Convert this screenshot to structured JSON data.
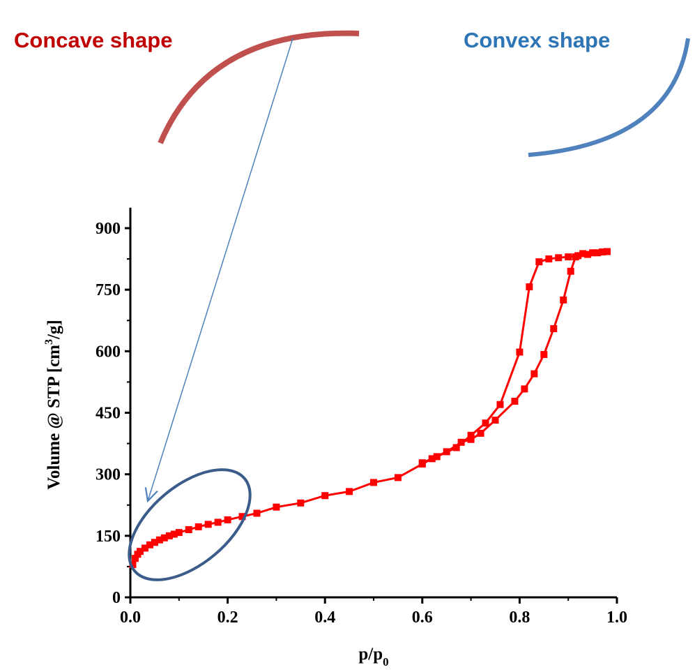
{
  "chart_data": {
    "type": "line",
    "annotations": [
      {
        "text": "Concave shape",
        "color": "#c00000"
      },
      {
        "text": "Convex shape",
        "color": "#2e75b6"
      }
    ],
    "y_label": {
      "text": "Volume @ STP [cm",
      "superscript": "3",
      "suffix": "/g]"
    },
    "x_label": {
      "text": "p/p",
      "subscript": "0"
    },
    "xlim": [
      0,
      1
    ],
    "ylim": [
      0,
      950
    ],
    "xticks": [
      {
        "value": 0,
        "label": "0.0"
      },
      0.2,
      0.4,
      0.6,
      0.8,
      {
        "value": 1,
        "label": "1.0"
      }
    ],
    "yticks": [
      0,
      150,
      300,
      450,
      600,
      750,
      900
    ],
    "series": [
      {
        "color": "#ff0000",
        "x": [
          0.005,
          0.01,
          0.015,
          0.02,
          0.03,
          0.04,
          0.05,
          0.06,
          0.07,
          0.08,
          0.09,
          0.1,
          0.12,
          0.14,
          0.16,
          0.18,
          0.2,
          0.23,
          0.26,
          0.3,
          0.35,
          0.4,
          0.45,
          0.5,
          0.55,
          0.6,
          0.62,
          0.65,
          0.68,
          0.7,
          0.72,
          0.75,
          0.79,
          0.81,
          0.83,
          0.85,
          0.87,
          0.89,
          0.905,
          0.915,
          0.93,
          0.95,
          0.97,
          0.98
        ],
        "values": [
          80,
          95,
          105,
          112,
          120,
          128,
          134,
          140,
          145,
          150,
          154,
          158,
          165,
          172,
          178,
          183,
          189,
          197,
          205,
          220,
          230,
          248,
          258,
          280,
          292,
          325,
          338,
          355,
          378,
          385,
          400,
          432,
          478,
          508,
          545,
          592,
          655,
          725,
          795,
          830,
          838,
          840,
          842,
          843
        ]
      },
      {
        "color": "#ff0000",
        "x": [
          0.98,
          0.96,
          0.94,
          0.92,
          0.9,
          0.88,
          0.86,
          0.84,
          0.82,
          0.8,
          0.76,
          0.73,
          0.7,
          0.67,
          0.63,
          0.6
        ],
        "values": [
          843,
          840,
          836,
          833,
          830,
          828,
          825,
          818,
          757,
          598,
          470,
          425,
          395,
          365,
          343,
          328
        ]
      }
    ]
  }
}
